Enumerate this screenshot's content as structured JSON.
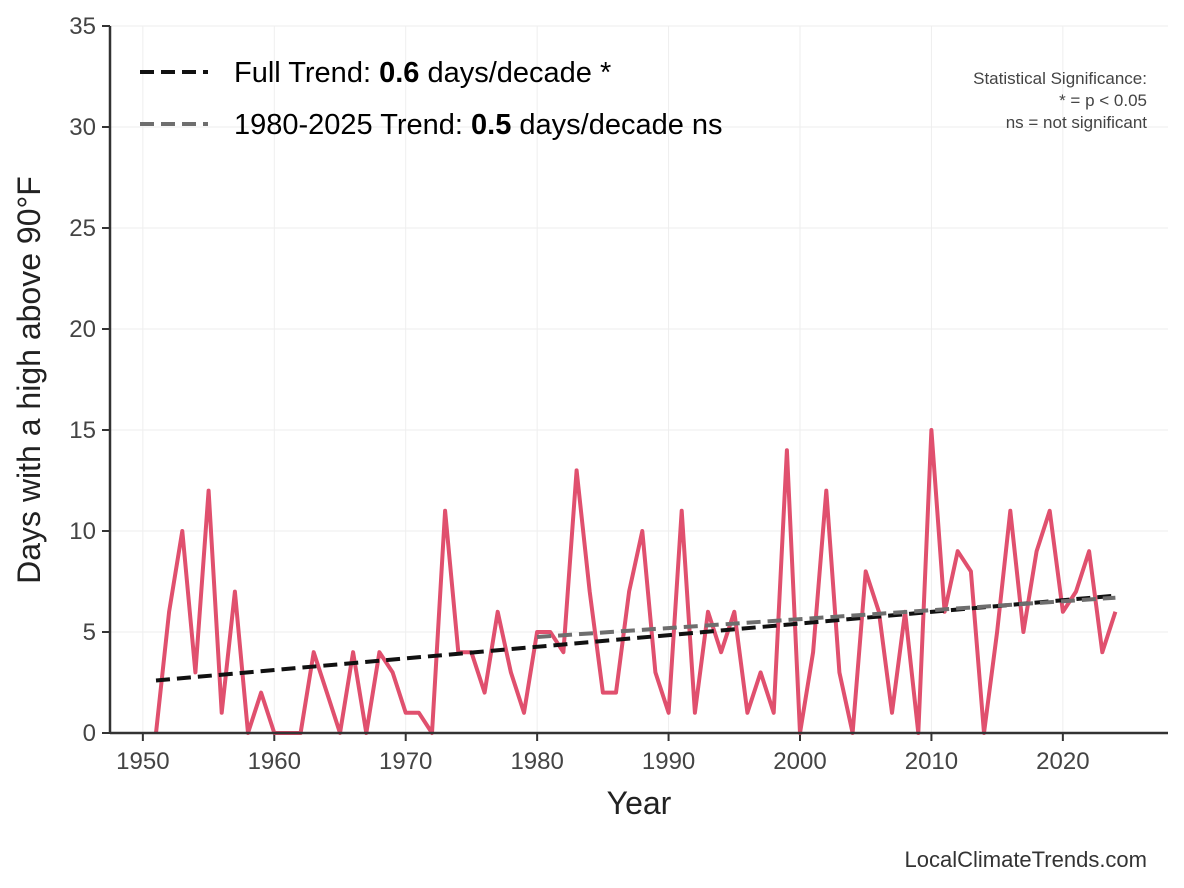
{
  "chart_data": {
    "type": "line",
    "title": "",
    "xlabel": "Year",
    "ylabel": "Days with a high above 90°F",
    "xlim": [
      1947.5,
      2028
    ],
    "ylim": [
      0,
      35
    ],
    "xticks": [
      1950,
      1960,
      1970,
      1980,
      1990,
      2000,
      2010,
      2020
    ],
    "yticks": [
      0,
      5,
      10,
      15,
      20,
      25,
      30,
      35
    ],
    "grid": true,
    "legend_position": "top-left",
    "series": [
      {
        "role": "observed",
        "color": "#e0506e",
        "x": [
          1951,
          1952,
          1953,
          1954,
          1955,
          1956,
          1957,
          1958,
          1959,
          1960,
          1961,
          1962,
          1963,
          1964,
          1965,
          1966,
          1967,
          1968,
          1969,
          1970,
          1971,
          1972,
          1973,
          1974,
          1975,
          1976,
          1977,
          1978,
          1979,
          1980,
          1981,
          1982,
          1983,
          1984,
          1985,
          1986,
          1987,
          1988,
          1989,
          1990,
          1991,
          1992,
          1993,
          1994,
          1995,
          1996,
          1997,
          1998,
          1999,
          2000,
          2001,
          2002,
          2003,
          2004,
          2005,
          2006,
          2007,
          2008,
          2009,
          2010,
          2011,
          2012,
          2013,
          2014,
          2015,
          2016,
          2017,
          2018,
          2019,
          2020,
          2021,
          2022,
          2023,
          2024
        ],
        "values": [
          0,
          6,
          10,
          3,
          12,
          1,
          7,
          0,
          2,
          0,
          0,
          0,
          4,
          2,
          0,
          4,
          0,
          4,
          3,
          1,
          1,
          0,
          11,
          4,
          4,
          2,
          6,
          3,
          1,
          5,
          5,
          4,
          13,
          7,
          2,
          2,
          7,
          10,
          3,
          1,
          11,
          1,
          6,
          4,
          6,
          1,
          3,
          1,
          14,
          0,
          4,
          12,
          3,
          0,
          8,
          6,
          1,
          6,
          0,
          15,
          6,
          9,
          8,
          0,
          5,
          11,
          5,
          9,
          11,
          6,
          7,
          9,
          4,
          6
        ]
      },
      {
        "name": "Full Trend",
        "color": "#111111",
        "style": "dashed",
        "x": [
          1951,
          2024
        ],
        "values": [
          2.6,
          6.8
        ]
      },
      {
        "name": "1980-2025 Trend",
        "color": "#6e6e6e",
        "style": "dashed",
        "x": [
          1980,
          2024
        ],
        "values": [
          4.75,
          6.7
        ]
      }
    ],
    "legend": [
      {
        "prefix": "Full Trend: ",
        "value": "0.6",
        "suffix": " days/decade *",
        "color": "#111111"
      },
      {
        "prefix": "1980-2025 Trend: ",
        "value": "0.5",
        "suffix": " days/decade ns",
        "color": "#6e6e6e"
      }
    ],
    "annotations": [
      "Statistical Significance:",
      "* = p < 0.05",
      "ns = not significant"
    ]
  },
  "credit": "LocalClimateTrends.com"
}
